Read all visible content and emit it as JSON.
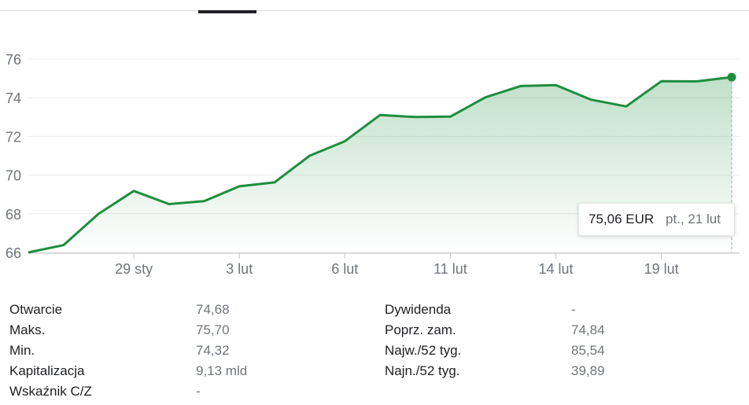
{
  "chart_data": {
    "type": "area",
    "ylim": [
      66,
      76
    ],
    "y_ticks": [
      "66",
      "68",
      "70",
      "72",
      "74",
      "76"
    ],
    "x_tick_labels": [
      "29 sty",
      "3 lut",
      "6 lut",
      "11 lut",
      "14 lut",
      "19 lut"
    ],
    "x_tick_index": [
      3,
      6,
      9,
      12,
      15,
      18
    ],
    "values": [
      66.0,
      66.38,
      68.0,
      69.18,
      68.5,
      68.65,
      69.42,
      69.62,
      71.0,
      71.75,
      73.1,
      73.0,
      73.02,
      74.02,
      74.6,
      74.65,
      73.9,
      73.55,
      74.85,
      74.84,
      75.06
    ],
    "line_color": "#1e8e3e",
    "grid": true,
    "tooltip": {
      "price": "75,06 EUR",
      "date": "pt., 21 lut"
    }
  },
  "stats": {
    "left": [
      {
        "label": "Otwarcie",
        "value": "74,68"
      },
      {
        "label": "Maks.",
        "value": "75,70"
      },
      {
        "label": "Min.",
        "value": "74,32"
      },
      {
        "label": "Kapitalizacja",
        "value": "9,13 mld"
      },
      {
        "label": "Wskaźnik C/Z",
        "value": "-"
      }
    ],
    "right": [
      {
        "label": "Dywidenda",
        "value": "-"
      },
      {
        "label": "Poprz. zam.",
        "value": "74,84"
      },
      {
        "label": "Najw./52 tyg.",
        "value": "85,54"
      },
      {
        "label": "Najn./52 tyg.",
        "value": "39,89"
      }
    ]
  }
}
